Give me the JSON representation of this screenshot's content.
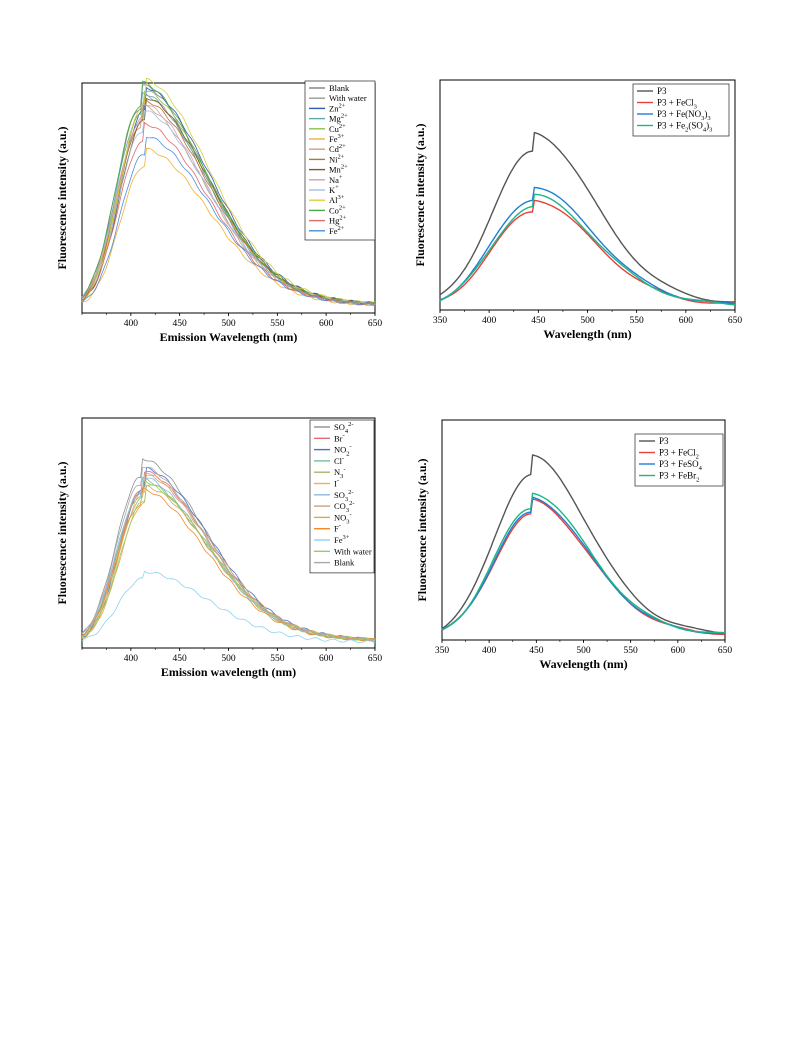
{
  "chart_data": [
    {
      "type": "line",
      "xlabel": "Emission Wavelength (nm)",
      "ylabel": "Fluorescence intensity (a.u.)",
      "xlim": [
        350,
        650
      ],
      "xticks": [
        "400",
        "450",
        "500",
        "550",
        "600",
        "650"
      ],
      "yticks_labeled": false,
      "legend_position": "top-right",
      "series": [
        {
          "name": "Blank",
          "color": "#808080",
          "peak": 0.87
        },
        {
          "name": "With water",
          "color": "#9a9a9a",
          "peak": 0.83
        },
        {
          "name": "Zn",
          "sup": "2+",
          "color": "#2f5bb5",
          "peak": 0.86
        },
        {
          "name": "Mg",
          "sup": "2+",
          "color": "#5fa8b0",
          "peak": 0.84
        },
        {
          "name": "Cu",
          "sup": "2+",
          "color": "#8fbf4d",
          "peak": 0.85
        },
        {
          "name": "Fe",
          "sup": "3+",
          "color": "#f2b036",
          "peak": 0.62
        },
        {
          "name": "Cd",
          "sup": "2+",
          "color": "#c9a27a",
          "peak": 0.79
        },
        {
          "name": "Ni",
          "sup": "2+",
          "color": "#b5762a",
          "peak": 0.81
        },
        {
          "name": "Mn",
          "sup": "2+",
          "color": "#7a5b2a",
          "peak": 0.82
        },
        {
          "name": "Na",
          "sup": "+",
          "color": "#d0a0b8",
          "peak": 0.8
        },
        {
          "name": "K",
          "sup": "+",
          "color": "#a0c0e0",
          "peak": 0.77
        },
        {
          "name": "Al",
          "sup": "3+",
          "color": "#d8d040",
          "peak": 0.89
        },
        {
          "name": "Co",
          "sup": "2+",
          "color": "#4caa4c",
          "peak": 0.88
        },
        {
          "name": "Hg",
          "sup": "2+",
          "color": "#e06a6a",
          "peak": 0.72
        },
        {
          "name": "Fe",
          "sup": "2+",
          "color": "#4a90d9",
          "peak": 0.67
        }
      ]
    },
    {
      "type": "line",
      "xlabel": "Wavelength (nm)",
      "ylabel": "Fluorescence intensity (a.u.)",
      "xlim": [
        350,
        650
      ],
      "xticks": [
        "350",
        "400",
        "450",
        "500",
        "550",
        "600",
        "650"
      ],
      "yticks_labeled": false,
      "legend_position": "top-right",
      "series": [
        {
          "name": "P3",
          "color": "#555555",
          "peak": 0.68
        },
        {
          "name": "P3 + FeCl",
          "sub": "3",
          "color": "#e8403a",
          "peak": 0.42
        },
        {
          "name": "P3 + Fe(NO",
          "sub": "3",
          "tail": ")",
          "sub2": "3",
          "color": "#1f7fd1",
          "peak": 0.47
        },
        {
          "name": "P3 + Fe",
          "sub": "2",
          "tail": "(SO",
          "sub2": "4",
          "tail2": ")",
          "sub3": "3",
          "color": "#1db58a",
          "peak": 0.44
        }
      ]
    },
    {
      "type": "line",
      "xlabel": "Emission wavelength (nm)",
      "ylabel": "Fluorescence intensity (a.u.)",
      "xlim": [
        350,
        650
      ],
      "xticks": [
        "400",
        "450",
        "500",
        "550",
        "600",
        "650"
      ],
      "yticks_labeled": false,
      "legend_position": "top-right",
      "series": [
        {
          "name": "SO",
          "sub": "4",
          "sup": "2-",
          "color": "#909090",
          "peak": 0.72
        },
        {
          "name": "Br",
          "sup": "-",
          "color": "#e37070",
          "peak": 0.67
        },
        {
          "name": "NO",
          "sub": "2",
          "sup": "-",
          "color": "#4a72c9",
          "peak": 0.68
        },
        {
          "name": "Cl",
          "sup": "-",
          "color": "#6fc0a0",
          "peak": 0.64
        },
        {
          "name": "N",
          "sub": "3",
          "sup": "-",
          "color": "#a0b86a",
          "peak": 0.63
        },
        {
          "name": "I",
          "sup": "-",
          "color": "#e8b06a",
          "peak": 0.66
        },
        {
          "name": "SO",
          "sub": "3",
          "sup": "2-",
          "color": "#8fb8e0",
          "peak": 0.65
        },
        {
          "name": "CO",
          "sub": "3",
          "sup": "2-",
          "color": "#c8a080",
          "peak": 0.66
        },
        {
          "name": "NO",
          "sub": "3",
          "sup": "-",
          "color": "#d9a84a",
          "peak": 0.61
        },
        {
          "name": "F",
          "sup": "-",
          "color": "#f08a2a",
          "peak": 0.6
        },
        {
          "name": "Fe",
          "sup": "3+",
          "color": "#8fd3ec",
          "peak": 0.28
        },
        {
          "name": "With water",
          "color": "#9acd60",
          "peak": 0.62
        },
        {
          "name": "Blank",
          "color": "#aaaaaa",
          "peak": 0.69
        }
      ]
    },
    {
      "type": "line",
      "xlabel": "Wavelength (nm)",
      "ylabel": "Fluorescence intensity (a.u.)",
      "xlim": [
        350,
        650
      ],
      "xticks": [
        "350",
        "400",
        "450",
        "500",
        "550",
        "600",
        "650"
      ],
      "yticks_labeled": false,
      "legend_position": "top-right",
      "series": [
        {
          "name": "P3",
          "color": "#555555",
          "peak": 0.74
        },
        {
          "name": "P3 + FeCl",
          "sub": "2",
          "color": "#e8403a",
          "peak": 0.56
        },
        {
          "name": "P3 + FeSO",
          "sub": "4",
          "color": "#1f7fd1",
          "peak": 0.57
        },
        {
          "name": "P3 + FeBr",
          "sub": "2",
          "color": "#1db58a",
          "peak": 0.59
        }
      ]
    }
  ]
}
